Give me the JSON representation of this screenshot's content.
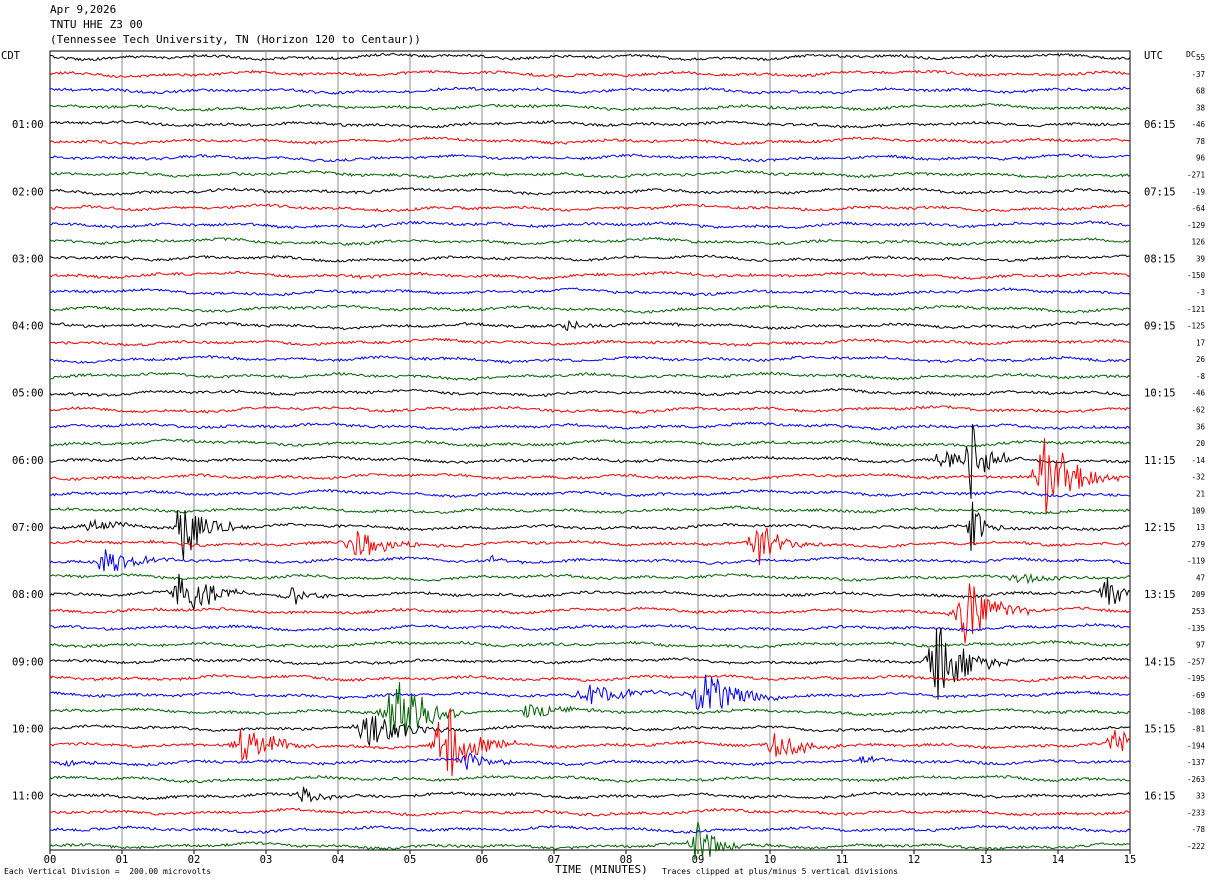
{
  "header": {
    "date": "Apr 9,2026",
    "station": "TNTU HHE Z3 00",
    "location": "(Tennessee Tech University, TN (Horizon 120 to Centaur))"
  },
  "axis_labels": {
    "left": "CDT",
    "right": "UTC",
    "dc": "DC"
  },
  "footer": {
    "scale_note": "Each Vertical Division =  200.00 microvolts",
    "clip_note": "Traces clipped at plus/minus 5 vertical divisions"
  },
  "colors": [
    "#000000",
    "#ff0000",
    "#0000ff",
    "#006400"
  ],
  "chart_data": {
    "type": "line",
    "title": "",
    "xlabel": "TIME (MINUTES)",
    "ylabel": "",
    "xlim": [
      0,
      15
    ],
    "x_ticks": [
      "00",
      "01",
      "02",
      "03",
      "04",
      "05",
      "06",
      "07",
      "08",
      "09",
      "10",
      "11",
      "12",
      "13",
      "14",
      "15"
    ],
    "left_times": [
      "01:00",
      "02:00",
      "03:00",
      "04:00",
      "05:00",
      "06:00",
      "07:00",
      "08:00",
      "09:00",
      "10:00",
      "11:00"
    ],
    "right_times": [
      "06:15",
      "07:15",
      "08:15",
      "09:15",
      "10:15",
      "11:15",
      "12:15",
      "13:15",
      "14:15",
      "15:15",
      "16:15"
    ],
    "trace_count": 48,
    "dc_offsets": [
      55,
      -37,
      68,
      38,
      -46,
      78,
      96,
      -271,
      -19,
      -64,
      -129,
      126,
      39,
      -150,
      -3,
      -121,
      -125,
      17,
      26,
      -8,
      -46,
      -62,
      36,
      20,
      -14,
      -32,
      21,
      109,
      13,
      279,
      -119,
      47,
      209,
      253,
      -135,
      97,
      -257,
      -195,
      -69,
      -108,
      -81,
      -194,
      -137,
      -263,
      33,
      -233,
      -78,
      -222
    ],
    "events": [
      {
        "trace": 3,
        "minute": 6.65,
        "amp": 1,
        "dur": 0.5
      },
      {
        "trace": 4,
        "minute": 6.9,
        "amp": 1,
        "dur": 0.4
      },
      {
        "trace": 13,
        "minute": 4.3,
        "amp": 2,
        "dur": 0.6
      },
      {
        "trace": 16,
        "minute": 7.2,
        "amp": 6,
        "dur": 0.3
      },
      {
        "trace": 24,
        "minute": 12.4,
        "amp": 12,
        "dur": 0.4
      },
      {
        "trace": 24,
        "minute": 12.8,
        "amp": 40,
        "dur": 0.3
      },
      {
        "trace": 25,
        "minute": 13.85,
        "amp": 40,
        "dur": 0.6
      },
      {
        "trace": 28,
        "minute": 0.55,
        "amp": 10,
        "dur": 0.5
      },
      {
        "trace": 28,
        "minute": 1.85,
        "amp": 50,
        "dur": 0.3
      },
      {
        "trace": 28,
        "minute": 2.4,
        "amp": 8,
        "dur": 0.3
      },
      {
        "trace": 28,
        "minute": 12.8,
        "amp": 30,
        "dur": 0.2
      },
      {
        "trace": 29,
        "minute": 4.3,
        "amp": 14,
        "dur": 0.6
      },
      {
        "trace": 29,
        "minute": 9.85,
        "amp": 24,
        "dur": 0.4
      },
      {
        "trace": 30,
        "minute": 0.8,
        "amp": 16,
        "dur": 0.5
      },
      {
        "trace": 30,
        "minute": 6.15,
        "amp": 5,
        "dur": 0.4
      },
      {
        "trace": 31,
        "minute": 13.5,
        "amp": 6,
        "dur": 0.6
      },
      {
        "trace": 32,
        "minute": 1.85,
        "amp": 44,
        "dur": 0.4
      },
      {
        "trace": 32,
        "minute": 3.4,
        "amp": 14,
        "dur": 0.3
      },
      {
        "trace": 32,
        "minute": 14.7,
        "amp": 14,
        "dur": 0.4
      },
      {
        "trace": 33,
        "minute": 12.7,
        "amp": 40,
        "dur": 0.5
      },
      {
        "trace": 36,
        "minute": 12.35,
        "amp": 44,
        "dur": 0.5
      },
      {
        "trace": 38,
        "minute": 7.5,
        "amp": 10,
        "dur": 0.8
      },
      {
        "trace": 38,
        "minute": 9.1,
        "amp": 26,
        "dur": 0.6
      },
      {
        "trace": 39,
        "minute": 4.8,
        "amp": 46,
        "dur": 0.5
      },
      {
        "trace": 39,
        "minute": 6.7,
        "amp": 12,
        "dur": 0.5
      },
      {
        "trace": 40,
        "minute": 4.45,
        "amp": 18,
        "dur": 0.6
      },
      {
        "trace": 41,
        "minute": 2.7,
        "amp": 22,
        "dur": 0.5
      },
      {
        "trace": 41,
        "minute": 5.5,
        "amp": 44,
        "dur": 0.5
      },
      {
        "trace": 41,
        "minute": 10.1,
        "amp": 22,
        "dur": 0.4
      },
      {
        "trace": 41,
        "minute": 14.8,
        "amp": 14,
        "dur": 0.4
      },
      {
        "trace": 42,
        "minute": 0.25,
        "amp": 5,
        "dur": 0.3
      },
      {
        "trace": 42,
        "minute": 5.8,
        "amp": 10,
        "dur": 0.4
      },
      {
        "trace": 42,
        "minute": 11.3,
        "amp": 5,
        "dur": 0.3
      },
      {
        "trace": 44,
        "minute": 3.5,
        "amp": 10,
        "dur": 0.35
      },
      {
        "trace": 47,
        "minute": 9.0,
        "amp": 24,
        "dur": 0.4
      }
    ]
  }
}
